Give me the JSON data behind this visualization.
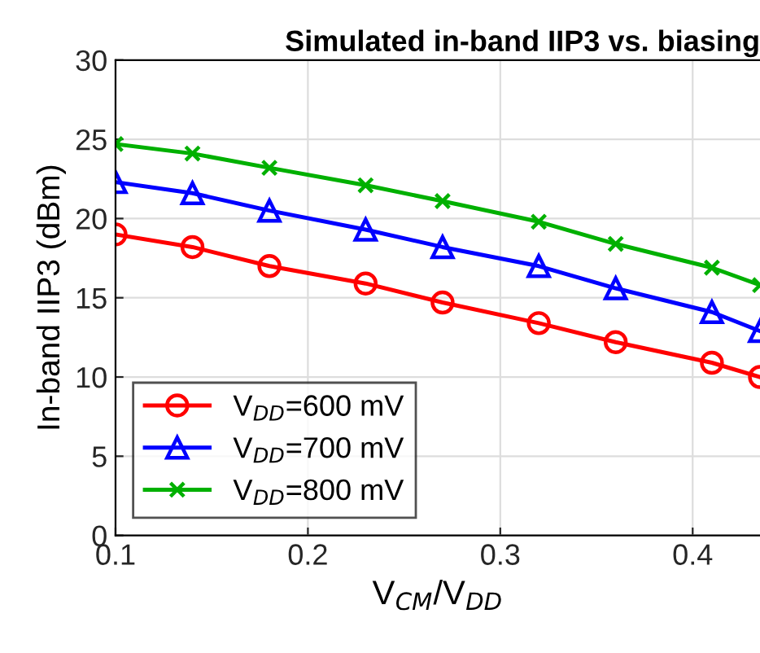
{
  "chart_data": {
    "type": "line",
    "title": "Simulated in-band IIP3 vs. biasing",
    "xlabel": "V$_{CM}$/V$_{DD}$",
    "ylabel": "In-band IIP3 (dBm)",
    "x": [
      0.1,
      0.14,
      0.18,
      0.23,
      0.27,
      0.32,
      0.36,
      0.41,
      0.435
    ],
    "series": [
      {
        "name": "V$_{DD}$=600 mV",
        "color": "#ff0000",
        "marker": "circle",
        "values": [
          19.0,
          18.2,
          17.0,
          15.9,
          14.7,
          13.4,
          12.2,
          10.9,
          10.0
        ]
      },
      {
        "name": "V$_{DD}$=700 mV",
        "color": "#0000ff",
        "marker": "triangle",
        "values": [
          22.3,
          21.6,
          20.5,
          19.3,
          18.2,
          17.0,
          15.6,
          14.1,
          12.9
        ]
      },
      {
        "name": "V$_{DD}$=800 mV",
        "color": "#00b000",
        "marker": "cross",
        "values": [
          24.7,
          24.1,
          23.2,
          22.1,
          21.1,
          19.8,
          18.4,
          16.9,
          15.8
        ]
      }
    ],
    "xlim": [
      0.1,
      0.435
    ],
    "xticks": [
      0.1,
      0.2,
      0.3,
      0.4
    ],
    "ylim": [
      0,
      30
    ],
    "yticks": [
      0,
      5,
      10,
      15,
      20,
      25,
      30
    ],
    "grid": true,
    "legend": "bottom left",
    "line_style": "solid"
  }
}
